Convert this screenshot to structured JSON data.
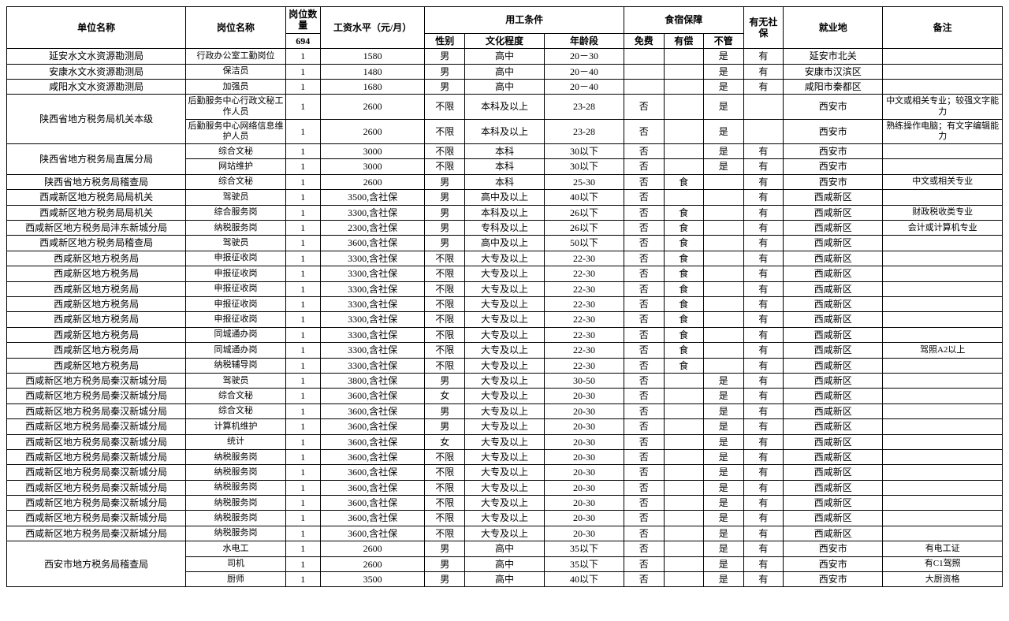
{
  "table": {
    "headers": {
      "unit": "单位名称",
      "position": "岗位名称",
      "qty_group": "岗位数量",
      "qty_total": "694",
      "salary": "工资水平（元/月）",
      "cond_group": "用工条件",
      "sex": "性别",
      "edu": "文化程度",
      "age": "年龄段",
      "room_group": "食宿保障",
      "free": "免费",
      "paid": "有偿",
      "none": "不管",
      "ss": "有无社保",
      "loc": "就业地",
      "note": "备注"
    },
    "rows": [
      {
        "unit": "延安水文水资源勘测局",
        "pos": "行政办公室工勤岗位",
        "qty": "1",
        "sal": "1580",
        "sex": "男",
        "edu": "高中",
        "age": "20－30",
        "free": "",
        "paid": "",
        "none": "是",
        "ss": "有",
        "loc": "延安市北关",
        "note": "",
        "unit_span": 1
      },
      {
        "unit": "安康水文水资源勘测局",
        "pos": "保洁员",
        "qty": "1",
        "sal": "1480",
        "sex": "男",
        "edu": "高中",
        "age": "20－40",
        "free": "",
        "paid": "",
        "none": "是",
        "ss": "有",
        "loc": "安康市汉滨区",
        "note": "",
        "unit_span": 1
      },
      {
        "unit": "咸阳水文水资源勘测局",
        "pos": "加强员",
        "qty": "1",
        "sal": "1680",
        "sex": "男",
        "edu": "高中",
        "age": "20－40",
        "free": "",
        "paid": "",
        "none": "是",
        "ss": "有",
        "loc": "咸阳市秦都区",
        "note": "",
        "unit_span": 1
      },
      {
        "unit": "陕西省地方税务局机关本级",
        "pos": "后勤服务中心行政文秘工作人员",
        "qty": "1",
        "sal": "2600",
        "sex": "不限",
        "edu": "本科及以上",
        "age": "23-28",
        "free": "否",
        "paid": "",
        "none": "是",
        "ss": "",
        "loc": "西安市",
        "note": "中文或相关专业；较强文字能力",
        "unit_span": 2
      },
      {
        "unit": "",
        "pos": "后勤服务中心网络信息维护人员",
        "qty": "1",
        "sal": "2600",
        "sex": "不限",
        "edu": "本科及以上",
        "age": "23-28",
        "free": "否",
        "paid": "",
        "none": "是",
        "ss": "",
        "loc": "西安市",
        "note": "熟练操作电脑；有文字编辑能力",
        "unit_span": 0
      },
      {
        "unit": "陕西省地方税务局直属分局",
        "pos": "综合文秘",
        "qty": "1",
        "sal": "3000",
        "sex": "不限",
        "edu": "本科",
        "age": "30以下",
        "free": "否",
        "paid": "",
        "none": "是",
        "ss": "有",
        "loc": "西安市",
        "note": "",
        "unit_span": 2
      },
      {
        "unit": "",
        "pos": "网站维护",
        "qty": "1",
        "sal": "3000",
        "sex": "不限",
        "edu": "本科",
        "age": "30以下",
        "free": "否",
        "paid": "",
        "none": "是",
        "ss": "有",
        "loc": "西安市",
        "note": "",
        "unit_span": 0
      },
      {
        "unit": "陕西省地方税务局稽查局",
        "pos": "综合文秘",
        "qty": "1",
        "sal": "2600",
        "sex": "男",
        "edu": "本科",
        "age": "25-30",
        "free": "否",
        "paid": "食",
        "none": "",
        "ss": "有",
        "loc": "西安市",
        "note": "中文或相关专业",
        "unit_span": 1
      },
      {
        "unit": "西咸新区地方税务局局机关",
        "pos": "驾驶员",
        "qty": "1",
        "sal": "3500,含社保",
        "sex": "男",
        "edu": "高中及以上",
        "age": "40以下",
        "free": "否",
        "paid": "",
        "none": "",
        "ss": "有",
        "loc": "西咸新区",
        "note": "",
        "unit_span": 1
      },
      {
        "unit": "西咸新区地方税务局局机关",
        "pos": "综合服务岗",
        "qty": "1",
        "sal": "3300,含社保",
        "sex": "男",
        "edu": "本科及以上",
        "age": "26以下",
        "free": "否",
        "paid": "食",
        "none": "",
        "ss": "有",
        "loc": "西咸新区",
        "note": "财政税收类专业",
        "unit_span": 1
      },
      {
        "unit": "西咸新区地方税务局沣东新城分局",
        "pos": "纳税服务岗",
        "qty": "1",
        "sal": "2300,含社保",
        "sex": "男",
        "edu": "专科及以上",
        "age": "26以下",
        "free": "否",
        "paid": "食",
        "none": "",
        "ss": "有",
        "loc": "西咸新区",
        "note": "会计或计算机专业",
        "unit_span": 1
      },
      {
        "unit": "西咸新区地方税务局稽查局",
        "pos": "驾驶员",
        "qty": "1",
        "sal": "3600,含社保",
        "sex": "男",
        "edu": "高中及以上",
        "age": "50以下",
        "free": "否",
        "paid": "食",
        "none": "",
        "ss": "有",
        "loc": "西咸新区",
        "note": "",
        "unit_span": 1
      },
      {
        "unit": "西咸新区地方税务局",
        "pos": "申报征收岗",
        "qty": "1",
        "sal": "3300,含社保",
        "sex": "不限",
        "edu": "大专及以上",
        "age": "22-30",
        "free": "否",
        "paid": "食",
        "none": "",
        "ss": "有",
        "loc": "西咸新区",
        "note": "",
        "unit_span": 1
      },
      {
        "unit": "西咸新区地方税务局",
        "pos": "申报征收岗",
        "qty": "1",
        "sal": "3300,含社保",
        "sex": "不限",
        "edu": "大专及以上",
        "age": "22-30",
        "free": "否",
        "paid": "食",
        "none": "",
        "ss": "有",
        "loc": "西咸新区",
        "note": "",
        "unit_span": 1
      },
      {
        "unit": "西咸新区地方税务局",
        "pos": "申报征收岗",
        "qty": "1",
        "sal": "3300,含社保",
        "sex": "不限",
        "edu": "大专及以上",
        "age": "22-30",
        "free": "否",
        "paid": "食",
        "none": "",
        "ss": "有",
        "loc": "西咸新区",
        "note": "",
        "unit_span": 1
      },
      {
        "unit": "西咸新区地方税务局",
        "pos": "申报征收岗",
        "qty": "1",
        "sal": "3300,含社保",
        "sex": "不限",
        "edu": "大专及以上",
        "age": "22-30",
        "free": "否",
        "paid": "食",
        "none": "",
        "ss": "有",
        "loc": "西咸新区",
        "note": "",
        "unit_span": 1
      },
      {
        "unit": "西咸新区地方税务局",
        "pos": "申报征收岗",
        "qty": "1",
        "sal": "3300,含社保",
        "sex": "不限",
        "edu": "大专及以上",
        "age": "22-30",
        "free": "否",
        "paid": "食",
        "none": "",
        "ss": "有",
        "loc": "西咸新区",
        "note": "",
        "unit_span": 1
      },
      {
        "unit": "西咸新区地方税务局",
        "pos": "同城通办岗",
        "qty": "1",
        "sal": "3300,含社保",
        "sex": "不限",
        "edu": "大专及以上",
        "age": "22-30",
        "free": "否",
        "paid": "食",
        "none": "",
        "ss": "有",
        "loc": "西咸新区",
        "note": "",
        "unit_span": 1
      },
      {
        "unit": "西咸新区地方税务局",
        "pos": "同城通办岗",
        "qty": "1",
        "sal": "3300,含社保",
        "sex": "不限",
        "edu": "大专及以上",
        "age": "22-30",
        "free": "否",
        "paid": "食",
        "none": "",
        "ss": "有",
        "loc": "西咸新区",
        "note": "驾照A2以上",
        "unit_span": 1
      },
      {
        "unit": "西咸新区地方税务局",
        "pos": "纳税辅导岗",
        "qty": "1",
        "sal": "3300,含社保",
        "sex": "不限",
        "edu": "大专及以上",
        "age": "22-30",
        "free": "否",
        "paid": "食",
        "none": "",
        "ss": "有",
        "loc": "西咸新区",
        "note": "",
        "unit_span": 1
      },
      {
        "unit": "西咸新区地方税务局秦汉新城分局",
        "pos": "驾驶员",
        "qty": "1",
        "sal": "3800,含社保",
        "sex": "男",
        "edu": "大专及以上",
        "age": "30-50",
        "free": "否",
        "paid": "",
        "none": "是",
        "ss": "有",
        "loc": "西咸新区",
        "note": "",
        "unit_span": 1
      },
      {
        "unit": "西咸新区地方税务局秦汉新城分局",
        "pos": "综合文秘",
        "qty": "1",
        "sal": "3600,含社保",
        "sex": "女",
        "edu": "大专及以上",
        "age": "20-30",
        "free": "否",
        "paid": "",
        "none": "是",
        "ss": "有",
        "loc": "西咸新区",
        "note": "",
        "unit_span": 1
      },
      {
        "unit": "西咸新区地方税务局秦汉新城分局",
        "pos": "综合文秘",
        "qty": "1",
        "sal": "3600,含社保",
        "sex": "男",
        "edu": "大专及以上",
        "age": "20-30",
        "free": "否",
        "paid": "",
        "none": "是",
        "ss": "有",
        "loc": "西咸新区",
        "note": "",
        "unit_span": 1
      },
      {
        "unit": "西咸新区地方税务局秦汉新城分局",
        "pos": "计算机维护",
        "qty": "1",
        "sal": "3600,含社保",
        "sex": "男",
        "edu": "大专及以上",
        "age": "20-30",
        "free": "否",
        "paid": "",
        "none": "是",
        "ss": "有",
        "loc": "西咸新区",
        "note": "",
        "unit_span": 1
      },
      {
        "unit": "西咸新区地方税务局秦汉新城分局",
        "pos": "统计",
        "qty": "1",
        "sal": "3600,含社保",
        "sex": "女",
        "edu": "大专及以上",
        "age": "20-30",
        "free": "否",
        "paid": "",
        "none": "是",
        "ss": "有",
        "loc": "西咸新区",
        "note": "",
        "unit_span": 1
      },
      {
        "unit": "西咸新区地方税务局秦汉新城分局",
        "pos": "纳税服务岗",
        "qty": "1",
        "sal": "3600,含社保",
        "sex": "不限",
        "edu": "大专及以上",
        "age": "20-30",
        "free": "否",
        "paid": "",
        "none": "是",
        "ss": "有",
        "loc": "西咸新区",
        "note": "",
        "unit_span": 1
      },
      {
        "unit": "西咸新区地方税务局秦汉新城分局",
        "pos": "纳税服务岗",
        "qty": "1",
        "sal": "3600,含社保",
        "sex": "不限",
        "edu": "大专及以上",
        "age": "20-30",
        "free": "否",
        "paid": "",
        "none": "是",
        "ss": "有",
        "loc": "西咸新区",
        "note": "",
        "unit_span": 1
      },
      {
        "unit": "西咸新区地方税务局秦汉新城分局",
        "pos": "纳税服务岗",
        "qty": "1",
        "sal": "3600,含社保",
        "sex": "不限",
        "edu": "大专及以上",
        "age": "20-30",
        "free": "否",
        "paid": "",
        "none": "是",
        "ss": "有",
        "loc": "西咸新区",
        "note": "",
        "unit_span": 1
      },
      {
        "unit": "西咸新区地方税务局秦汉新城分局",
        "pos": "纳税服务岗",
        "qty": "1",
        "sal": "3600,含社保",
        "sex": "不限",
        "edu": "大专及以上",
        "age": "20-30",
        "free": "否",
        "paid": "",
        "none": "是",
        "ss": "有",
        "loc": "西咸新区",
        "note": "",
        "unit_span": 1
      },
      {
        "unit": "西咸新区地方税务局秦汉新城分局",
        "pos": "纳税服务岗",
        "qty": "1",
        "sal": "3600,含社保",
        "sex": "不限",
        "edu": "大专及以上",
        "age": "20-30",
        "free": "否",
        "paid": "",
        "none": "是",
        "ss": "有",
        "loc": "西咸新区",
        "note": "",
        "unit_span": 1
      },
      {
        "unit": "西咸新区地方税务局秦汉新城分局",
        "pos": "纳税服务岗",
        "qty": "1",
        "sal": "3600,含社保",
        "sex": "不限",
        "edu": "大专及以上",
        "age": "20-30",
        "free": "否",
        "paid": "",
        "none": "是",
        "ss": "有",
        "loc": "西咸新区",
        "note": "",
        "unit_span": 1
      },
      {
        "unit": "西安市地方税务局稽查局",
        "pos": "水电工",
        "qty": "1",
        "sal": "2600",
        "sex": "男",
        "edu": "高中",
        "age": "35以下",
        "free": "否",
        "paid": "",
        "none": "是",
        "ss": "有",
        "loc": "西安市",
        "note": "有电工证",
        "unit_span": 3
      },
      {
        "unit": "",
        "pos": "司机",
        "qty": "1",
        "sal": "2600",
        "sex": "男",
        "edu": "高中",
        "age": "35以下",
        "free": "否",
        "paid": "",
        "none": "是",
        "ss": "有",
        "loc": "西安市",
        "note": "有C1驾照",
        "unit_span": 0
      },
      {
        "unit": "",
        "pos": "厨师",
        "qty": "1",
        "sal": "3500",
        "sex": "男",
        "edu": "高中",
        "age": "40以下",
        "free": "否",
        "paid": "",
        "none": "是",
        "ss": "有",
        "loc": "西安市",
        "note": "大厨资格",
        "unit_span": 0
      }
    ]
  }
}
